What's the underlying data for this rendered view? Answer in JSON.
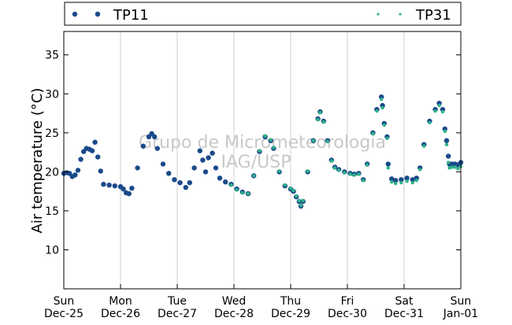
{
  "chart_data": {
    "type": "scatter",
    "title": "",
    "xlabel": "",
    "ylabel": "Air temperature (°C)",
    "ylim": [
      5,
      38
    ],
    "yticks": [
      10,
      15,
      20,
      25,
      30,
      35
    ],
    "xlim": [
      0,
      7
    ],
    "x_unit": "days from Sun Dec-25 00:00",
    "xticks": [
      {
        "x": 0,
        "day": "Sun",
        "date": "Dec-25"
      },
      {
        "x": 1,
        "day": "Mon",
        "date": "Dec-26"
      },
      {
        "x": 2,
        "day": "Tue",
        "date": "Dec-27"
      },
      {
        "x": 3,
        "day": "Wed",
        "date": "Dec-28"
      },
      {
        "x": 4,
        "day": "Thu",
        "date": "Dec-29"
      },
      {
        "x": 5,
        "day": "Fri",
        "date": "Dec-30"
      },
      {
        "x": 6,
        "day": "Sat",
        "date": "Dec-31"
      },
      {
        "x": 7,
        "day": "Sun",
        "date": "Jan-01"
      }
    ],
    "grid": "vertical",
    "legend": "top, outside plot",
    "watermark": [
      "Grupo de Micrometeorologia",
      "IAG/USP"
    ],
    "series": [
      {
        "name": "TP11",
        "color": "#1a4a8a",
        "marker": "dot-large",
        "points": [
          [
            0.0,
            19.8
          ],
          [
            0.05,
            19.9
          ],
          [
            0.1,
            19.8
          ],
          [
            0.15,
            19.4
          ],
          [
            0.2,
            19.6
          ],
          [
            0.25,
            20.2
          ],
          [
            0.3,
            21.6
          ],
          [
            0.35,
            22.6
          ],
          [
            0.4,
            23.0
          ],
          [
            0.45,
            22.9
          ],
          [
            0.5,
            22.7
          ],
          [
            0.55,
            23.8
          ],
          [
            0.6,
            21.9
          ],
          [
            0.65,
            20.1
          ],
          [
            0.7,
            18.4
          ],
          [
            0.8,
            18.3
          ],
          [
            0.9,
            18.2
          ],
          [
            1.0,
            18.1
          ],
          [
            1.05,
            17.8
          ],
          [
            1.1,
            17.3
          ],
          [
            1.15,
            17.2
          ],
          [
            1.2,
            17.9
          ],
          [
            1.3,
            20.5
          ],
          [
            1.4,
            23.3
          ],
          [
            1.5,
            24.5
          ],
          [
            1.55,
            24.9
          ],
          [
            1.6,
            24.5
          ],
          [
            1.65,
            23.0
          ],
          [
            1.75,
            21.0
          ],
          [
            1.85,
            19.8
          ],
          [
            1.95,
            19.0
          ],
          [
            2.05,
            18.6
          ],
          [
            2.15,
            18.0
          ],
          [
            2.22,
            18.6
          ],
          [
            2.3,
            20.5
          ],
          [
            2.4,
            22.7
          ],
          [
            2.45,
            21.5
          ],
          [
            2.5,
            20.0
          ],
          [
            2.55,
            21.8
          ],
          [
            2.62,
            22.4
          ],
          [
            2.68,
            20.5
          ],
          [
            2.75,
            19.2
          ],
          [
            2.85,
            18.7
          ],
          [
            2.95,
            18.4
          ],
          [
            3.05,
            17.8
          ],
          [
            3.15,
            17.4
          ],
          [
            3.25,
            17.2
          ],
          [
            3.35,
            19.5
          ],
          [
            3.45,
            22.6
          ],
          [
            3.55,
            24.5
          ],
          [
            3.65,
            24.0
          ],
          [
            3.7,
            23.0
          ],
          [
            3.8,
            20.0
          ],
          [
            3.9,
            18.2
          ],
          [
            4.0,
            17.8
          ],
          [
            4.05,
            17.5
          ],
          [
            4.1,
            16.8
          ],
          [
            4.15,
            16.2
          ],
          [
            4.18,
            15.6
          ],
          [
            4.22,
            16.2
          ],
          [
            4.3,
            20.0
          ],
          [
            4.4,
            24.0
          ],
          [
            4.48,
            26.8
          ],
          [
            4.52,
            27.7
          ],
          [
            4.58,
            26.5
          ],
          [
            4.65,
            24.0
          ],
          [
            4.72,
            21.5
          ],
          [
            4.78,
            20.6
          ],
          [
            4.85,
            20.3
          ],
          [
            4.95,
            20.0
          ],
          [
            5.05,
            19.8
          ],
          [
            5.12,
            19.7
          ],
          [
            5.2,
            19.8
          ],
          [
            5.28,
            19.0
          ],
          [
            5.35,
            21.0
          ],
          [
            5.45,
            25.0
          ],
          [
            5.52,
            28.0
          ],
          [
            5.6,
            29.6
          ],
          [
            5.62,
            28.5
          ],
          [
            5.65,
            26.2
          ],
          [
            5.7,
            24.5
          ],
          [
            5.72,
            21.0
          ],
          [
            5.78,
            19.1
          ],
          [
            5.85,
            18.9
          ],
          [
            5.95,
            19.0
          ],
          [
            6.05,
            19.2
          ],
          [
            6.15,
            19.0
          ],
          [
            6.22,
            19.2
          ],
          [
            6.28,
            20.5
          ],
          [
            6.35,
            23.5
          ],
          [
            6.45,
            26.5
          ],
          [
            6.55,
            28.0
          ],
          [
            6.62,
            28.8
          ],
          [
            6.68,
            28.0
          ],
          [
            6.72,
            25.5
          ],
          [
            6.75,
            24.0
          ],
          [
            6.78,
            22.0
          ],
          [
            6.8,
            21.0
          ],
          [
            6.85,
            21.0
          ],
          [
            6.9,
            21.0
          ],
          [
            6.95,
            20.9
          ],
          [
            7.0,
            21.2
          ]
        ]
      },
      {
        "name": "TP31",
        "color": "#2db38a",
        "marker": "dot-small",
        "points": [
          [
            2.95,
            18.3
          ],
          [
            3.05,
            17.7
          ],
          [
            3.15,
            17.3
          ],
          [
            3.25,
            17.2
          ],
          [
            3.35,
            19.5
          ],
          [
            3.45,
            22.7
          ],
          [
            3.55,
            24.6
          ],
          [
            3.65,
            24.1
          ],
          [
            3.7,
            23.1
          ],
          [
            3.8,
            20.1
          ],
          [
            3.9,
            18.3
          ],
          [
            4.0,
            17.9
          ],
          [
            4.05,
            17.6
          ],
          [
            4.1,
            16.9
          ],
          [
            4.15,
            16.3
          ],
          [
            4.18,
            15.7
          ],
          [
            4.22,
            16.3
          ],
          [
            4.3,
            20.1
          ],
          [
            4.4,
            24.0
          ],
          [
            4.48,
            26.7
          ],
          [
            4.52,
            27.6
          ],
          [
            4.58,
            26.4
          ],
          [
            4.65,
            23.9
          ],
          [
            4.72,
            21.4
          ],
          [
            4.78,
            20.5
          ],
          [
            4.85,
            20.2
          ],
          [
            4.95,
            19.9
          ],
          [
            5.05,
            19.7
          ],
          [
            5.12,
            19.6
          ],
          [
            5.2,
            19.7
          ],
          [
            5.28,
            18.9
          ],
          [
            5.35,
            20.9
          ],
          [
            5.45,
            24.9
          ],
          [
            5.52,
            27.8
          ],
          [
            5.6,
            29.3
          ],
          [
            5.62,
            28.2
          ],
          [
            5.65,
            26.0
          ],
          [
            5.7,
            24.3
          ],
          [
            5.72,
            20.5
          ],
          [
            5.78,
            18.7
          ],
          [
            5.85,
            18.5
          ],
          [
            5.95,
            18.6
          ],
          [
            6.05,
            18.8
          ],
          [
            6.15,
            18.6
          ],
          [
            6.22,
            18.9
          ],
          [
            6.28,
            20.3
          ],
          [
            6.35,
            23.3
          ],
          [
            6.45,
            26.3
          ],
          [
            6.55,
            27.8
          ],
          [
            6.62,
            28.5
          ],
          [
            6.68,
            27.7
          ],
          [
            6.72,
            25.2
          ],
          [
            6.75,
            23.5
          ],
          [
            6.78,
            21.2
          ],
          [
            6.8,
            20.5
          ],
          [
            6.85,
            20.6
          ],
          [
            6.9,
            20.6
          ],
          [
            6.95,
            20.4
          ],
          [
            7.0,
            20.7
          ]
        ]
      }
    ]
  }
}
